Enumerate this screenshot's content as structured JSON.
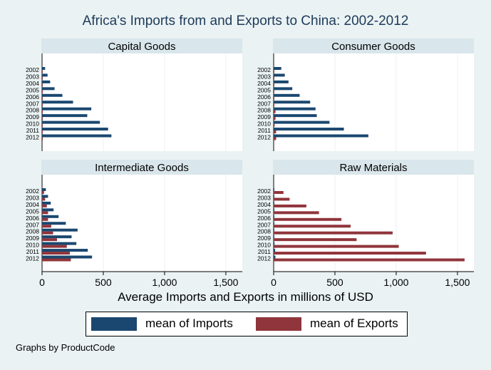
{
  "chart_data": {
    "type": "bar",
    "orientation": "horizontal",
    "title": "Africa's Imports from and Exports to China: 2002-2012",
    "xlabel": "Average Imports and Exports in millions of USD",
    "xlim": [
      0,
      1640
    ],
    "xticks": [
      0,
      500,
      1000,
      1500
    ],
    "xtick_labels": [
      "0",
      "500",
      "1,000",
      "1,500"
    ],
    "grid": true,
    "legend_placement": "bottom",
    "footer": "Graphs by ProductCode",
    "categories": [
      "2002",
      "2003",
      "2004",
      "2005",
      "2006",
      "2007",
      "2008",
      "2009",
      "2010",
      "2011",
      "2012"
    ],
    "colors": {
      "Imports": "#1a476f",
      "Exports": "#90353b",
      "background": "#eaf2f3",
      "panel_header": "#d9e6eb"
    },
    "legend": [
      "mean of Imports",
      "mean of Exports"
    ],
    "panels": [
      {
        "title": "Capital Goods",
        "series": [
          {
            "name": "mean of Imports",
            "values": [
              25,
              45,
              66,
              102,
              166,
              253,
              402,
              369,
              472,
              539,
              566
            ]
          },
          {
            "name": "mean of Exports",
            "values": [
              2,
              2,
              3,
              3,
              4,
              5,
              4,
              4,
              4,
              5,
              5
            ]
          }
        ]
      },
      {
        "title": "Consumer Goods",
        "series": [
          {
            "name": "mean of Imports",
            "values": [
              62,
              91,
              121,
              152,
              212,
              298,
              342,
              352,
              456,
              573,
              773
            ]
          },
          {
            "name": "mean of Exports",
            "values": [
              2,
              2,
              3,
              3,
              4,
              6,
              15,
              15,
              8,
              20,
              20
            ]
          }
        ]
      },
      {
        "title": "Intermediate Goods",
        "series": [
          {
            "name": "mean of Imports",
            "values": [
              31,
              49,
              71,
              94,
              135,
              194,
              290,
              241,
              280,
              373,
              408
            ]
          },
          {
            "name": "mean of Exports",
            "values": [
              16,
              25,
              39,
              49,
              49,
              75,
              90,
              122,
              202,
              227,
              235
            ]
          }
        ]
      },
      {
        "title": "Raw Materials",
        "series": [
          {
            "name": "mean of Imports",
            "values": [
              2,
              2,
              3,
              3,
              4,
              5,
              5,
              5,
              7,
              12,
              14
            ]
          },
          {
            "name": "mean of Exports",
            "values": [
              80,
              130,
              267,
              370,
              553,
              628,
              971,
              677,
              1021,
              1243,
              1558
            ]
          }
        ]
      }
    ]
  }
}
